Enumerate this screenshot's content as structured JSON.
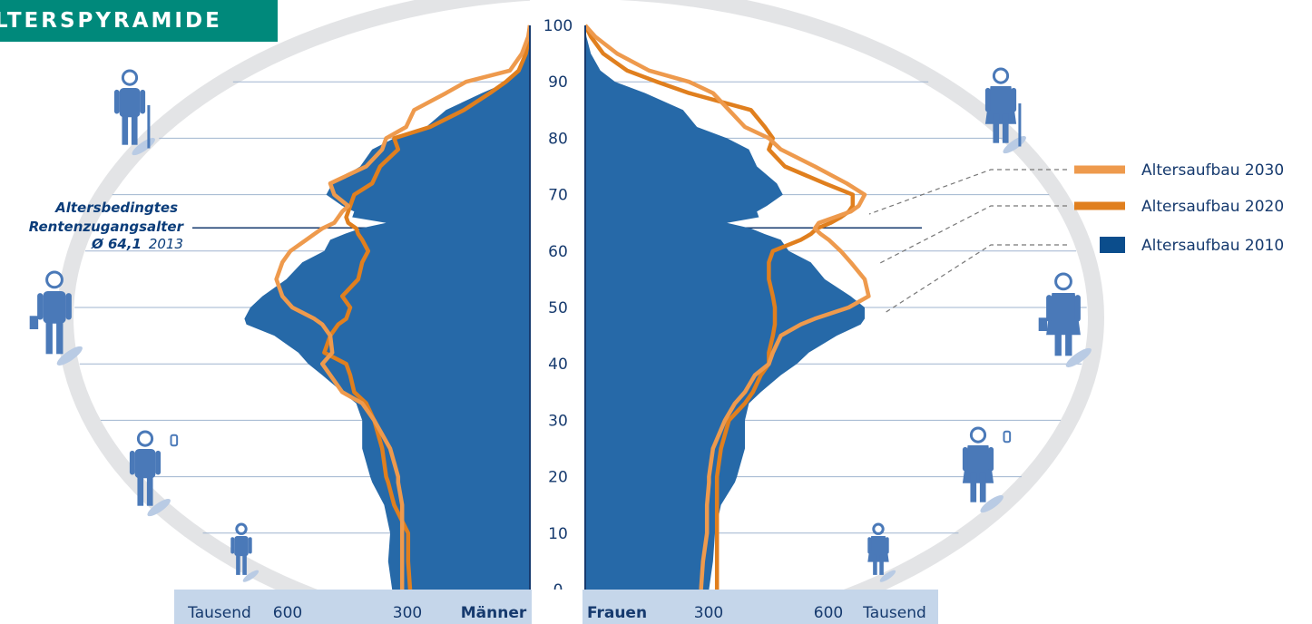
{
  "banner_title": "LTERSPYRAMIDE",
  "retirement": {
    "line1": "Altersbedingtes",
    "line2": "Rentenzugangsalter",
    "value": "Ø 64,1",
    "year": "2013"
  },
  "axis": {
    "unit_left": "Tausend",
    "unit_right": "Tausend",
    "men_label": "Männer",
    "women_label": "Frauen"
  },
  "legend": [
    {
      "label": "Altersaufbau 2030",
      "color": "#ee9a4d"
    },
    {
      "label": "Altersaufbau 2020",
      "color": "#e07f1e"
    },
    {
      "label": "Altersaufbau 2010",
      "color": "#0b4d8c"
    }
  ],
  "icons": [
    "elderly-man-icon",
    "businessman-icon",
    "young-man-phone-icon",
    "boy-toy-icon",
    "elderly-woman-icon",
    "businesswoman-icon",
    "young-woman-phone-icon",
    "girl-toy-icon"
  ],
  "chart_data": {
    "type": "area",
    "title": "",
    "age_ticks": [
      0,
      10,
      20,
      30,
      40,
      50,
      60,
      70,
      80,
      90,
      100
    ],
    "x_ticks_men": [
      600,
      300
    ],
    "x_ticks_women": [
      300,
      600
    ],
    "x_unit": "Tausend",
    "retirement_age": 64.1,
    "age": [
      0,
      5,
      10,
      15,
      19,
      20,
      25,
      30,
      33,
      35,
      38,
      40,
      42,
      45,
      47,
      48,
      50,
      52,
      55,
      58,
      60,
      62,
      63,
      64,
      65,
      66,
      67,
      68,
      70,
      72,
      75,
      78,
      80,
      82,
      85,
      88,
      90,
      92,
      95,
      98,
      100
    ],
    "series": [
      {
        "name": "Altersaufbau 2010",
        "men": [
          345,
          355,
          350,
          365,
          395,
          400,
          420,
          420,
          435,
          470,
          520,
          555,
          580,
          640,
          710,
          715,
          700,
          670,
          610,
          570,
          515,
          500,
          465,
          425,
          360,
          445,
          440,
          470,
          510,
          495,
          425,
          395,
          340,
          260,
          210,
          120,
          55,
          28,
          10,
          2,
          0
        ],
        "women": [
          310,
          320,
          325,
          340,
          375,
          380,
          400,
          400,
          410,
          440,
          490,
          530,
          560,
          630,
          690,
          700,
          700,
          665,
          600,
          565,
          510,
          490,
          450,
          415,
          355,
          435,
          430,
          455,
          495,
          480,
          430,
          410,
          355,
          280,
          245,
          150,
          75,
          38,
          14,
          3,
          0
        ]
      },
      {
        "name": "Altersaufbau 2020",
        "men": [
          300,
          305,
          305,
          340,
          355,
          360,
          370,
          390,
          410,
          440,
          450,
          460,
          515,
          500,
          480,
          460,
          450,
          470,
          430,
          420,
          405,
          420,
          430,
          435,
          455,
          460,
          455,
          450,
          440,
          395,
          375,
          330,
          340,
          250,
          165,
          100,
          60,
          28,
          10,
          2,
          0
        ],
        "women": [
          330,
          330,
          330,
          330,
          330,
          330,
          340,
          360,
          400,
          420,
          440,
          460,
          460,
          470,
          475,
          475,
          475,
          470,
          460,
          460,
          470,
          540,
          565,
          580,
          615,
          640,
          660,
          670,
          670,
          600,
          500,
          460,
          470,
          450,
          415,
          260,
          180,
          105,
          45,
          14,
          0
        ]
      },
      {
        "name": "Altersaufbau 2030",
        "men": [
          320,
          320,
          320,
          320,
          330,
          330,
          350,
          390,
          420,
          470,
          500,
          520,
          495,
          500,
          520,
          540,
          595,
          620,
          635,
          620,
          600,
          560,
          540,
          520,
          490,
          480,
          470,
          455,
          490,
          500,
          410,
          370,
          360,
          310,
          290,
          210,
          160,
          50,
          20,
          4,
          0
        ],
        "women": [
          290,
          295,
          305,
          305,
          310,
          310,
          320,
          350,
          375,
          400,
          425,
          460,
          470,
          490,
          540,
          575,
          660,
          710,
          700,
          665,
          640,
          610,
          590,
          575,
          585,
          625,
          665,
          685,
          700,
          655,
          575,
          490,
          460,
          400,
          360,
          320,
          260,
          160,
          80,
          25,
          0
        ]
      }
    ]
  }
}
